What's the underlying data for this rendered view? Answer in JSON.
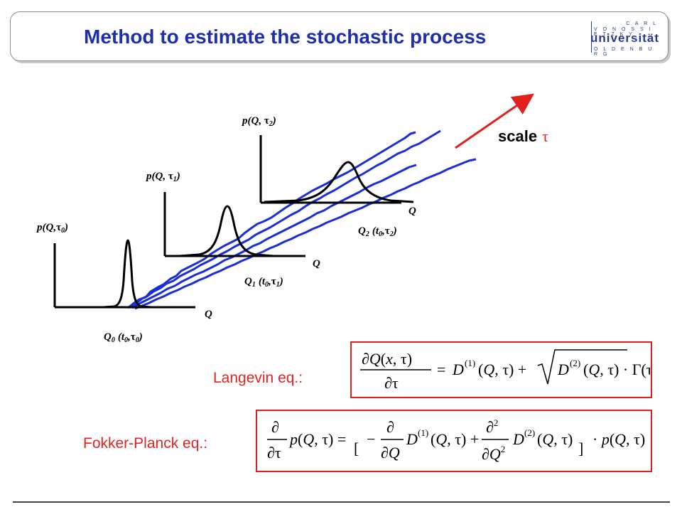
{
  "slide": {
    "title": "Method to estimate the stochastic process",
    "logo": {
      "line1": "C A R L",
      "line2": "V O N  O S S I E T Z K Y",
      "line3": "universität",
      "line4": "O L D E N B U R G"
    }
  },
  "diagram": {
    "scale_label": "scale",
    "scale_symbol": "τ",
    "panels": [
      {
        "ylabel": "p(Q,",
        "ysym": "τ",
        "ysub": "0",
        "xlabel": "Q",
        "point_label": "Q",
        "point_sub": "0",
        "point_args": "(t",
        "point_args_sub": "0",
        "point_tau_sub": "0"
      },
      {
        "ylabel": "p(Q, ",
        "ysym": "τ",
        "ysub": "1",
        "xlabel": "Q",
        "point_label": "Q",
        "point_sub": "1",
        "point_args": "(t",
        "point_args_sub": "0",
        "point_tau_sub": "1"
      },
      {
        "ylabel": "p(Q, ",
        "ysym": "τ",
        "ysub": "2",
        "xlabel": "Q",
        "point_label": "Q",
        "point_sub": "2",
        "point_args": "(t",
        "point_args_sub": "0",
        "point_tau_sub": "2"
      }
    ]
  },
  "equations": {
    "langevin_label": "Langevin eq.:",
    "fokker_planck_label": "Fokker-Planck eq.:"
  },
  "colors": {
    "title": "#1f2fa8",
    "accent_red": "#e21f1f",
    "path_blue": "#1a2fd8"
  }
}
